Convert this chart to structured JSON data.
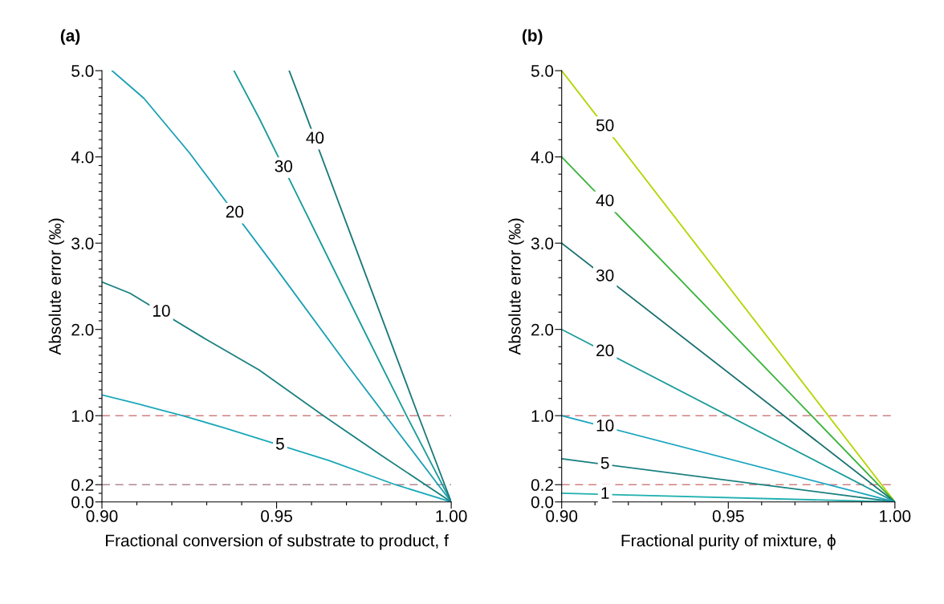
{
  "chart_data": [
    {
      "type": "line",
      "title": "(a)",
      "xlabel": "Fractional conversion of substrate to product, f",
      "ylabel": "Absolute error (‰)",
      "xlim": [
        0.9,
        1.0
      ],
      "ylim": [
        0,
        5.0
      ],
      "xticks": [
        {
          "value": 0.9,
          "label": "0.90"
        },
        {
          "value": 0.91,
          "label": null
        },
        {
          "value": 0.92,
          "label": null
        },
        {
          "value": 0.93,
          "label": null
        },
        {
          "value": 0.94,
          "label": null
        },
        {
          "value": 0.95,
          "label": "0.95"
        },
        {
          "value": 0.96,
          "label": null
        },
        {
          "value": 0.97,
          "label": null
        },
        {
          "value": 0.98,
          "label": null
        },
        {
          "value": 0.99,
          "label": null
        },
        {
          "value": 1.0,
          "label": "1.00"
        }
      ],
      "yticks": [
        {
          "value": 0,
          "label": "0.0"
        },
        {
          "value": 0.1,
          "label": null
        },
        {
          "value": 0.2,
          "label": "0.2"
        },
        {
          "value": 0.3,
          "label": null
        },
        {
          "value": 0.4,
          "label": null
        },
        {
          "value": 0.5,
          "label": null
        },
        {
          "value": 0.6,
          "label": null
        },
        {
          "value": 0.7,
          "label": null
        },
        {
          "value": 0.8,
          "label": null
        },
        {
          "value": 0.9,
          "label": null
        },
        {
          "value": 1.0,
          "label": "1.0"
        },
        {
          "value": 1.1,
          "label": null
        },
        {
          "value": 1.2,
          "label": null
        },
        {
          "value": 1.3,
          "label": null
        },
        {
          "value": 1.4,
          "label": null
        },
        {
          "value": 1.5,
          "label": null
        },
        {
          "value": 1.6,
          "label": null
        },
        {
          "value": 1.7,
          "label": null
        },
        {
          "value": 1.8,
          "label": null
        },
        {
          "value": 1.9,
          "label": null
        },
        {
          "value": 2.0,
          "label": "2.0"
        },
        {
          "value": 2.1,
          "label": null
        },
        {
          "value": 2.2,
          "label": null
        },
        {
          "value": 2.3,
          "label": null
        },
        {
          "value": 2.4,
          "label": null
        },
        {
          "value": 2.5,
          "label": null
        },
        {
          "value": 2.6,
          "label": null
        },
        {
          "value": 2.7,
          "label": null
        },
        {
          "value": 2.8,
          "label": null
        },
        {
          "value": 2.9,
          "label": null
        },
        {
          "value": 3.0,
          "label": "3.0"
        },
        {
          "value": 3.1,
          "label": null
        },
        {
          "value": 3.2,
          "label": null
        },
        {
          "value": 3.3,
          "label": null
        },
        {
          "value": 3.4,
          "label": null
        },
        {
          "value": 3.5,
          "label": null
        },
        {
          "value": 3.6,
          "label": null
        },
        {
          "value": 3.7,
          "label": null
        },
        {
          "value": 3.8,
          "label": null
        },
        {
          "value": 3.9,
          "label": null
        },
        {
          "value": 4.0,
          "label": "4.0"
        },
        {
          "value": 4.1,
          "label": null
        },
        {
          "value": 4.2,
          "label": null
        },
        {
          "value": 4.3,
          "label": null
        },
        {
          "value": 4.4,
          "label": null
        },
        {
          "value": 4.5,
          "label": null
        },
        {
          "value": 4.6,
          "label": null
        },
        {
          "value": 4.7,
          "label": null
        },
        {
          "value": 4.8,
          "label": null
        },
        {
          "value": 4.9,
          "label": null
        },
        {
          "value": 5.0,
          "label": "5.0"
        }
      ],
      "grid": false,
      "legend": false,
      "marker": "none",
      "line_style": "solid",
      "ref_lines": [
        {
          "axis": "y",
          "value": 1.0,
          "color": "#d08080",
          "line_style": "dashed"
        },
        {
          "axis": "y",
          "value": 0.2,
          "color": "#b08890",
          "line_style": "dashed"
        }
      ],
      "series": [
        {
          "name": "5",
          "color": "#1aa8b8",
          "x": [
            0.9,
            0.91,
            0.923,
            0.935,
            0.965,
            0.984,
            1.0
          ],
          "values": [
            1.24,
            1.14,
            1.0,
            0.86,
            0.48,
            0.2,
            0
          ]
        },
        {
          "name": "10",
          "color": "#1a8080",
          "x": [
            0.9,
            0.908,
            0.93,
            0.945,
            0.9634,
            0.98,
            1.0
          ],
          "values": [
            2.55,
            2.42,
            1.88,
            1.53,
            1.0,
            0.54,
            0
          ]
        },
        {
          "name": "20",
          "color": "#1a9fb5",
          "x": [
            0.9029,
            0.912,
            0.925,
            0.95,
            0.97,
            0.9812,
            1.0
          ],
          "values": [
            5.0,
            4.68,
            4.05,
            2.7,
            1.6,
            1.0,
            0
          ]
        },
        {
          "name": "30",
          "color": "#1a9a9a",
          "x": [
            0.9378,
            0.945,
            0.96,
            0.975,
            0.9872,
            1.0
          ],
          "values": [
            5.0,
            4.45,
            3.22,
            1.99,
            1.0,
            0
          ]
        },
        {
          "name": "40",
          "color": "#1a7878",
          "x": [
            0.9536,
            0.957,
            0.97,
            0.9906,
            1.0
          ],
          "values": [
            5.0,
            4.64,
            3.23,
            1.0,
            0
          ]
        }
      ]
    },
    {
      "type": "line",
      "title": "(b)",
      "xlabel": "Fractional purity of mixture, ϕ",
      "ylabel": "Absolute error (‰)",
      "xlim": [
        0.9,
        1.0
      ],
      "ylim": [
        0,
        5.0
      ],
      "xticks": [
        {
          "value": 0.9,
          "label": "0.90"
        },
        {
          "value": 0.91,
          "label": null
        },
        {
          "value": 0.92,
          "label": null
        },
        {
          "value": 0.93,
          "label": null
        },
        {
          "value": 0.94,
          "label": null
        },
        {
          "value": 0.95,
          "label": "0.95"
        },
        {
          "value": 0.96,
          "label": null
        },
        {
          "value": 0.97,
          "label": null
        },
        {
          "value": 0.98,
          "label": null
        },
        {
          "value": 0.99,
          "label": null
        },
        {
          "value": 1.0,
          "label": "1.00"
        }
      ],
      "yticks": [
        {
          "value": 0,
          "label": "0.0"
        },
        {
          "value": 0.2,
          "label": "0.2"
        },
        {
          "value": 0.4,
          "label": null
        },
        {
          "value": 0.6,
          "label": null
        },
        {
          "value": 0.8,
          "label": null
        },
        {
          "value": 1.0,
          "label": "1.0"
        },
        {
          "value": 1.2,
          "label": null
        },
        {
          "value": 1.4,
          "label": null
        },
        {
          "value": 1.6,
          "label": null
        },
        {
          "value": 1.8,
          "label": null
        },
        {
          "value": 2.0,
          "label": "2.0"
        },
        {
          "value": 2.2,
          "label": null
        },
        {
          "value": 2.4,
          "label": null
        },
        {
          "value": 2.6,
          "label": null
        },
        {
          "value": 2.8,
          "label": null
        },
        {
          "value": 3.0,
          "label": "3.0"
        },
        {
          "value": 3.2,
          "label": null
        },
        {
          "value": 3.4,
          "label": null
        },
        {
          "value": 3.6,
          "label": null
        },
        {
          "value": 3.8,
          "label": null
        },
        {
          "value": 4.0,
          "label": "4.0"
        },
        {
          "value": 4.2,
          "label": null
        },
        {
          "value": 4.4,
          "label": null
        },
        {
          "value": 4.6,
          "label": null
        },
        {
          "value": 4.8,
          "label": null
        },
        {
          "value": 5.0,
          "label": "5.0"
        }
      ],
      "grid": false,
      "legend": false,
      "marker": "none",
      "line_style": "solid",
      "ref_lines": [
        {
          "axis": "y",
          "value": 1.0,
          "color": "#d08080",
          "line_style": "dashed"
        },
        {
          "axis": "y",
          "value": 0.2,
          "color": "#d08080",
          "line_style": "dashed"
        }
      ],
      "series": [
        {
          "name": "50",
          "color": "#b5d400",
          "x": [
            0.9,
            1.0
          ],
          "values": [
            5.0,
            0
          ]
        },
        {
          "name": "40",
          "color": "#3cb43c",
          "x": [
            0.9,
            1.0
          ],
          "values": [
            4.0,
            0
          ]
        },
        {
          "name": "30",
          "color": "#1a7070",
          "x": [
            0.9,
            1.0
          ],
          "values": [
            3.0,
            0
          ]
        },
        {
          "name": "20",
          "color": "#1a9a9a",
          "x": [
            0.9,
            1.0
          ],
          "values": [
            2.0,
            0
          ]
        },
        {
          "name": "10",
          "color": "#1aa5c0",
          "x": [
            0.9,
            1.0
          ],
          "values": [
            1.0,
            0
          ]
        },
        {
          "name": "5",
          "color": "#1a8080",
          "x": [
            0.9,
            1.0
          ],
          "values": [
            0.5,
            0
          ]
        },
        {
          "name": "1",
          "color": "#20b0b0",
          "x": [
            0.9,
            1.0
          ],
          "values": [
            0.1,
            0
          ]
        }
      ]
    }
  ]
}
